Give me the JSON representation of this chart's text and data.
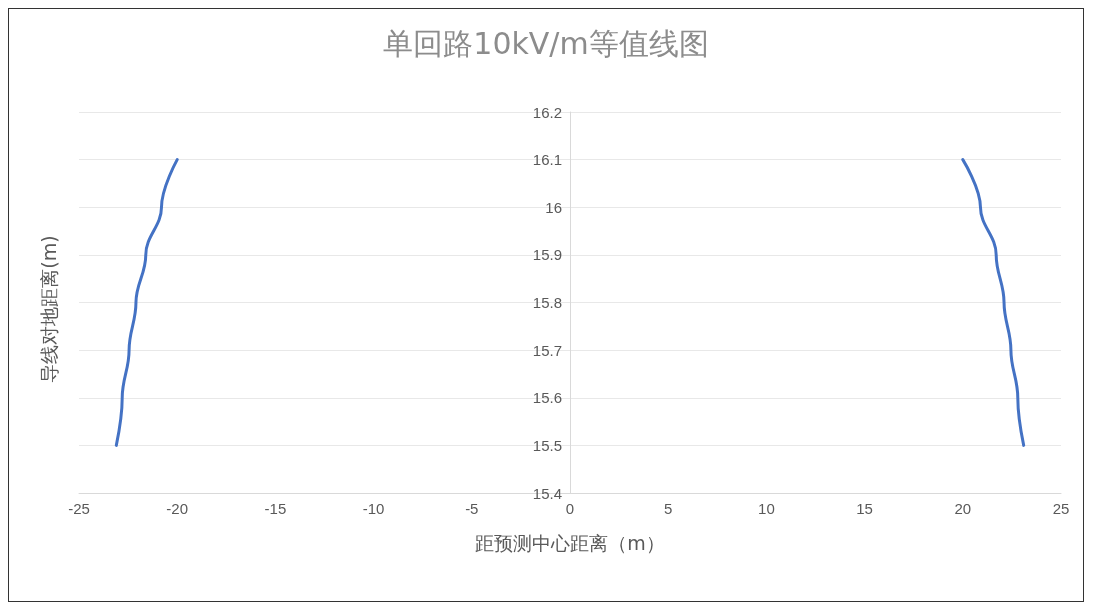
{
  "chart_data": {
    "type": "line",
    "title": "单回路10kV/m等值线图",
    "xlabel": "距预测中心距离（m）",
    "ylabel": "导线对地距离(m)",
    "series": [
      {
        "color": "#4472c4",
        "x": [
          -20,
          -20.8,
          -21.6,
          -22.1,
          -22.45,
          -22.8,
          -23.1
        ],
        "values": [
          16.1,
          16,
          15.9,
          15.8,
          15.7,
          15.6,
          15.5
        ]
      },
      {
        "color": "#4472c4",
        "x": [
          20,
          20.9,
          21.7,
          22.1,
          22.45,
          22.8,
          23.1
        ],
        "values": [
          16.1,
          16,
          15.9,
          15.8,
          15.7,
          15.6,
          15.5
        ]
      }
    ],
    "xlim": [
      -25,
      25
    ],
    "xticks": [
      -25,
      -20,
      -15,
      -10,
      -5,
      0,
      5,
      10,
      15,
      20,
      25
    ],
    "ylim": [
      15.4,
      16.2
    ],
    "yticks": [
      15.4,
      15.5,
      15.6,
      15.7,
      15.8,
      15.9,
      16,
      16.1,
      16.2
    ],
    "grid": "y",
    "marker": "none",
    "line_style": "solid"
  }
}
